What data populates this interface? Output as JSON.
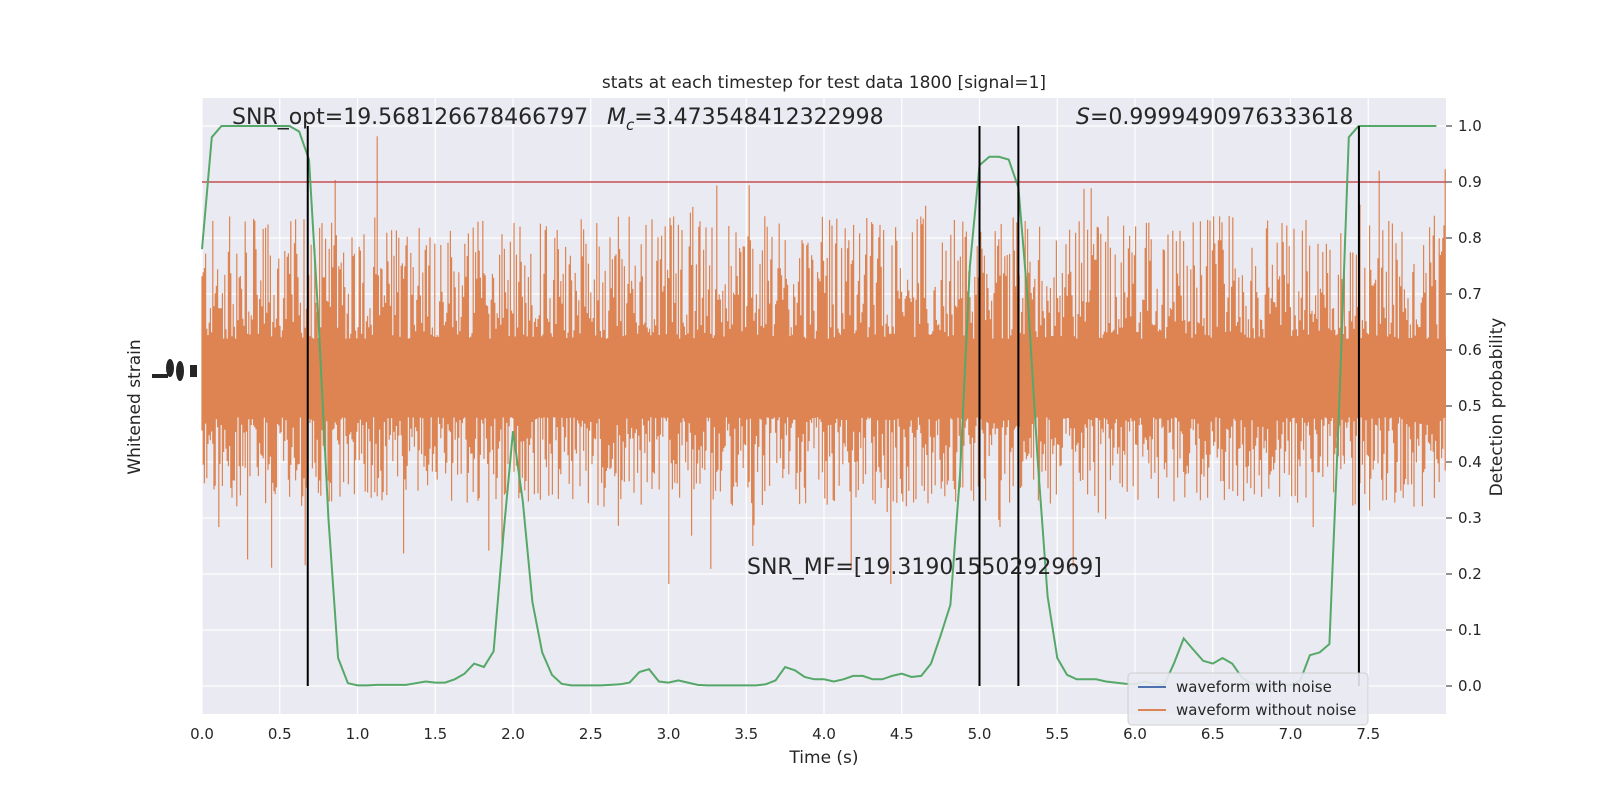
{
  "chart_data": {
    "type": "line",
    "title": "stats at each timestep for test data 1800 [signal=1]",
    "xlabel": "Time (s)",
    "ylabel_left": "Whitened strain",
    "ylabel_right": "Detection probability",
    "xlim": [
      0,
      8
    ],
    "ylim_right": [
      -0.05,
      1.05
    ],
    "x_ticks": [
      "0.0",
      "0.5",
      "1.0",
      "1.5",
      "2.0",
      "2.5",
      "3.0",
      "3.5",
      "4.0",
      "4.5",
      "5.0",
      "5.5",
      "6.0",
      "6.5",
      "7.0",
      "7.5"
    ],
    "y_ticks_right": [
      "0.0",
      "0.1",
      "0.2",
      "0.3",
      "0.4",
      "0.5",
      "0.6",
      "0.7",
      "0.8",
      "0.9",
      "1.0"
    ],
    "grid": true,
    "annotations": {
      "snr_opt": "SNR_opt=19.568126678466797",
      "mc_symbol": "M",
      "mc_sub": "c",
      "mc_value": "=3.473548412322998",
      "s_symbol": "S",
      "s_value": "=0.9999490976333618",
      "snr_mf": "SNR_MF=[19.31901550292969]"
    },
    "threshold": 0.9,
    "vlines_x": [
      0.68,
      5.0,
      5.25,
      7.44
    ],
    "legend": {
      "placement": "lower-right",
      "entries": [
        {
          "label": "waveform with noise",
          "color": "#4c72b0"
        },
        {
          "label": "waveform without noise",
          "color": "#dd8452"
        }
      ]
    },
    "colors": {
      "noise": "#dd8452",
      "probability": "#55a868",
      "threshold": "#c44e52",
      "vline": "#000000",
      "background": "#eaeaf2"
    },
    "series": [
      {
        "name": "detection probability",
        "x": [
          0.0,
          0.063,
          0.125,
          0.188,
          0.25,
          0.313,
          0.375,
          0.438,
          0.5,
          0.563,
          0.625,
          0.688,
          0.75,
          0.813,
          0.875,
          0.938,
          1.0,
          1.063,
          1.125,
          1.188,
          1.25,
          1.313,
          1.375,
          1.438,
          1.5,
          1.563,
          1.625,
          1.688,
          1.75,
          1.813,
          1.875,
          1.938,
          2.0,
          2.063,
          2.125,
          2.188,
          2.25,
          2.313,
          2.375,
          2.438,
          2.5,
          2.563,
          2.625,
          2.688,
          2.75,
          2.813,
          2.875,
          2.938,
          3.0,
          3.063,
          3.125,
          3.188,
          3.25,
          3.313,
          3.375,
          3.438,
          3.5,
          3.563,
          3.625,
          3.688,
          3.75,
          3.813,
          3.875,
          3.938,
          4.0,
          4.063,
          4.125,
          4.188,
          4.25,
          4.313,
          4.375,
          4.438,
          4.5,
          4.563,
          4.625,
          4.688,
          4.75,
          4.813,
          4.875,
          4.938,
          5.0,
          5.063,
          5.125,
          5.188,
          5.25,
          5.313,
          5.375,
          5.438,
          5.5,
          5.563,
          5.625,
          5.688,
          5.75,
          5.813,
          5.875,
          5.938,
          6.0,
          6.063,
          6.125,
          6.188,
          6.25,
          6.313,
          6.375,
          6.438,
          6.5,
          6.563,
          6.625,
          6.688,
          6.75,
          6.813,
          6.875,
          6.938,
          7.0,
          7.063,
          7.125,
          7.188,
          7.25,
          7.313,
          7.375,
          7.438,
          7.5,
          7.563,
          7.625,
          7.688,
          7.75,
          7.813,
          7.875,
          7.938
        ],
        "y": [
          0.78,
          0.98,
          1.0,
          1.0,
          1.0,
          1.0,
          1.0,
          1.0,
          1.0,
          1.0,
          0.99,
          0.94,
          0.65,
          0.3,
          0.05,
          0.005,
          0.001,
          0.001,
          0.002,
          0.002,
          0.002,
          0.002,
          0.005,
          0.008,
          0.006,
          0.006,
          0.012,
          0.022,
          0.04,
          0.034,
          0.062,
          0.27,
          0.455,
          0.33,
          0.15,
          0.06,
          0.02,
          0.004,
          0.001,
          0.001,
          0.001,
          0.001,
          0.002,
          0.003,
          0.006,
          0.025,
          0.03,
          0.008,
          0.006,
          0.01,
          0.006,
          0.002,
          0.001,
          0.001,
          0.001,
          0.001,
          0.001,
          0.001,
          0.003,
          0.01,
          0.034,
          0.028,
          0.016,
          0.012,
          0.012,
          0.008,
          0.012,
          0.018,
          0.018,
          0.012,
          0.012,
          0.018,
          0.022,
          0.016,
          0.018,
          0.04,
          0.09,
          0.145,
          0.38,
          0.75,
          0.93,
          0.945,
          0.945,
          0.94,
          0.89,
          0.68,
          0.4,
          0.16,
          0.05,
          0.02,
          0.012,
          0.012,
          0.012,
          0.008,
          0.006,
          0.004,
          0.003,
          0.008,
          0.004,
          0.002,
          0.04,
          0.085,
          0.065,
          0.045,
          0.04,
          0.05,
          0.04,
          0.015,
          0.004,
          0.002,
          0.002,
          0.003,
          0.002,
          0.01,
          0.055,
          0.06,
          0.075,
          0.5,
          0.98,
          1.0,
          1.0,
          1.0,
          1.0,
          1.0,
          1.0,
          1.0,
          1.0,
          1.0
        ]
      }
    ]
  }
}
